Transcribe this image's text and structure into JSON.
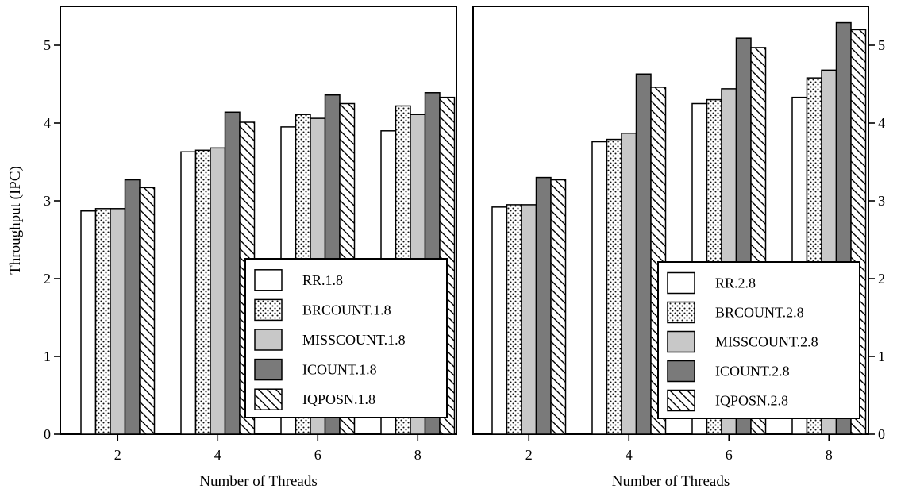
{
  "figure": {
    "ylabel": "Throughput (IPC)"
  },
  "style": {
    "colors": {
      "white": "#ffffff",
      "light_gray": "#c8c8c8",
      "dark_gray": "#7a7a7a",
      "dots": "#111111",
      "stroke": "#000000"
    }
  },
  "chart_data": [
    {
      "type": "bar",
      "xlabel": "Number of Threads",
      "ylabel": "Throughput (IPC)",
      "ylim": [
        0,
        5.5
      ],
      "yticks": [
        "0",
        "1",
        "2",
        "3",
        "4",
        "5"
      ],
      "categories": [
        "2",
        "4",
        "6",
        "8"
      ],
      "grid": false,
      "legend_position": "bottom-right",
      "series": [
        {
          "name": "RR.1.8",
          "fill": "white",
          "values": [
            2.87,
            3.63,
            3.95,
            3.9
          ]
        },
        {
          "name": "BRCOUNT.1.8",
          "fill": "dots",
          "values": [
            2.9,
            3.65,
            4.11,
            4.22
          ]
        },
        {
          "name": "MISSCOUNT.1.8",
          "fill": "light",
          "values": [
            2.9,
            3.68,
            4.06,
            4.11
          ]
        },
        {
          "name": "ICOUNT.1.8",
          "fill": "dark",
          "values": [
            3.27,
            4.14,
            4.36,
            4.39
          ]
        },
        {
          "name": "IQPOSN.1.8",
          "fill": "hatch",
          "values": [
            3.17,
            4.01,
            4.25,
            4.33
          ]
        }
      ]
    },
    {
      "type": "bar",
      "xlabel": "Number of Threads",
      "ylabel": "",
      "ylim": [
        0,
        5.5
      ],
      "yticks": [
        "0",
        "1",
        "2",
        "3",
        "4",
        "5"
      ],
      "categories": [
        "2",
        "4",
        "6",
        "8"
      ],
      "grid": false,
      "legend_position": "bottom-right",
      "series": [
        {
          "name": "RR.2.8",
          "fill": "white",
          "values": [
            2.92,
            3.76,
            4.25,
            4.33
          ]
        },
        {
          "name": "BRCOUNT.2.8",
          "fill": "dots",
          "values": [
            2.95,
            3.79,
            4.3,
            4.58
          ]
        },
        {
          "name": "MISSCOUNT.2.8",
          "fill": "light",
          "values": [
            2.95,
            3.87,
            4.44,
            4.68
          ]
        },
        {
          "name": "ICOUNT.2.8",
          "fill": "dark",
          "values": [
            3.3,
            4.63,
            5.09,
            5.29
          ]
        },
        {
          "name": "IQPOSN.2.8",
          "fill": "hatch",
          "values": [
            3.27,
            4.46,
            4.97,
            5.2
          ]
        }
      ]
    }
  ]
}
